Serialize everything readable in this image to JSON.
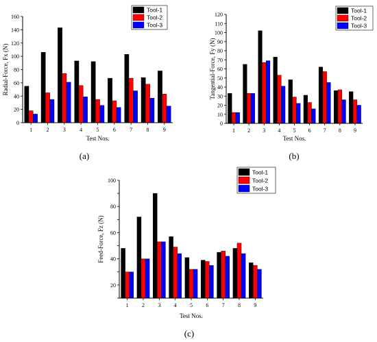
{
  "chart_data": [
    {
      "type": "bar",
      "caption": "(a)",
      "categories": [
        "1",
        "2",
        "3",
        "4",
        "5",
        "6",
        "7",
        "8",
        "9"
      ],
      "xlabel": "Test Nos.",
      "ylabel": "Radial-Force, Fx (N)",
      "ylim": [
        0,
        160
      ],
      "yticks": [
        0,
        20,
        40,
        60,
        80,
        100,
        120,
        140,
        160
      ],
      "legend_position": "top-right",
      "series": [
        {
          "name": "Tool-1",
          "color": "#000000",
          "values": [
            55,
            106,
            143,
            93,
            92,
            67,
            103,
            68,
            78
          ]
        },
        {
          "name": "Tool-2",
          "color": "#ff0000",
          "values": [
            18,
            45,
            74,
            56,
            35,
            33,
            67,
            58,
            43
          ]
        },
        {
          "name": "Tool-3",
          "color": "#0000ff",
          "values": [
            13,
            35,
            61,
            39,
            26,
            23,
            48,
            37,
            25
          ]
        }
      ]
    },
    {
      "type": "bar",
      "caption": "(b)",
      "categories": [
        "1",
        "2",
        "3",
        "4",
        "5",
        "6",
        "7",
        "8",
        "9"
      ],
      "xlabel": "Test Nos.",
      "ylabel": "Tangential-Force, Fy (N)",
      "ylim": [
        0,
        120
      ],
      "yticks": [
        0,
        10,
        20,
        30,
        40,
        50,
        60,
        70,
        80,
        90,
        100,
        110,
        120
      ],
      "legend_position": "top-right",
      "series": [
        {
          "name": "Tool-1",
          "color": "#000000",
          "values": [
            33,
            65,
            102,
            73,
            48,
            31,
            62,
            36,
            35
          ]
        },
        {
          "name": "Tool-2",
          "color": "#ff0000",
          "values": [
            12,
            33,
            67,
            53,
            29,
            23,
            57,
            37,
            26
          ]
        },
        {
          "name": "Tool-3",
          "color": "#0000ff",
          "values": [
            12,
            33,
            69,
            41,
            22,
            16,
            45,
            26,
            20
          ]
        }
      ]
    },
    {
      "type": "bar",
      "caption": "(c)",
      "categories": [
        "1",
        "2",
        "3",
        "4",
        "5",
        "6",
        "7",
        "8",
        "9"
      ],
      "xlabel": "Test Nos.",
      "ylabel": "Feed-Force, Fz (N)",
      "ylim": [
        10,
        100
      ],
      "yticks": [
        10,
        20,
        30,
        40,
        50,
        60,
        70,
        80,
        90,
        100
      ],
      "yticklabels": [
        "",
        "20",
        "",
        "40",
        "",
        "60",
        "",
        "80",
        "",
        "100"
      ],
      "legend_position": "top-right",
      "series": [
        {
          "name": "Tool-1",
          "color": "#000000",
          "values": [
            48,
            72,
            90,
            57,
            41,
            39,
            45,
            48,
            37
          ]
        },
        {
          "name": "Tool-2",
          "color": "#ff0000",
          "values": [
            30,
            40,
            53,
            49,
            32,
            38,
            46,
            52,
            35
          ]
        },
        {
          "name": "Tool-3",
          "color": "#0000ff",
          "values": [
            30,
            40,
            53,
            44,
            32,
            35,
            42,
            44,
            32
          ]
        }
      ]
    }
  ]
}
